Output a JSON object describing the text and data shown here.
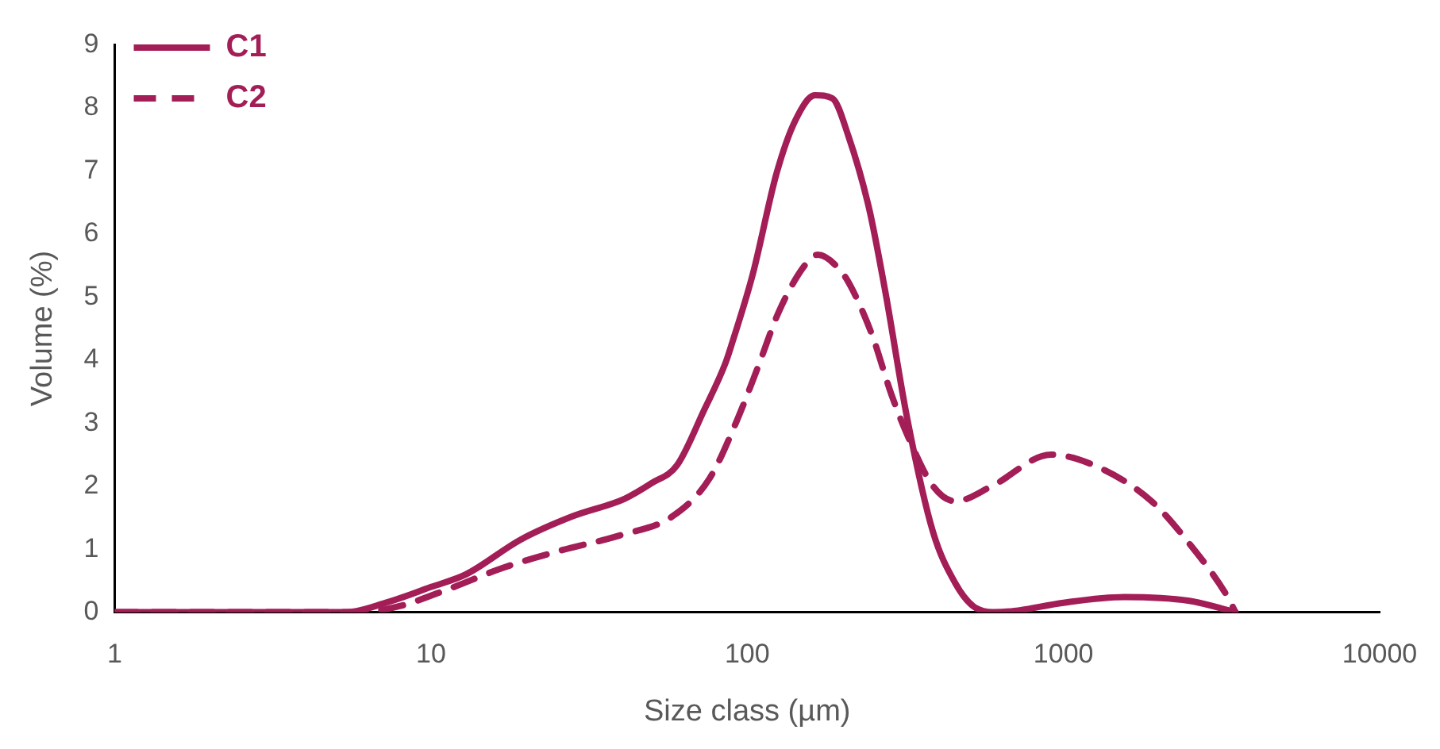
{
  "chart_data": {
    "type": "line",
    "xlabel": "Size class (µm)",
    "ylabel": "Volume (%)",
    "log": "x",
    "xlim": [
      1,
      10000
    ],
    "xticks": [
      1,
      10,
      100,
      1000,
      10000
    ],
    "ylim": [
      0,
      9
    ],
    "yticks": [
      0,
      1,
      2,
      3,
      4,
      5,
      6,
      7,
      8,
      9
    ],
    "grid": false,
    "legend": "top left",
    "marker": "none",
    "series": [
      {
        "name": "C1",
        "color": "#a31d56",
        "line_style": "solid",
        "x": [
          1,
          2,
          3,
          5.4,
          7.2,
          10,
          12.9,
          19.2,
          28,
          41,
          50,
          60,
          73,
          85.5,
          90,
          104,
          124,
          142,
          164,
          186,
          209,
          243,
          273,
          321,
          387,
          455,
          517,
          600,
          700,
          1000,
          1560,
          2500,
          3500
        ],
        "values": [
          0,
          0,
          0,
          0,
          0.15,
          0.4,
          0.6,
          1.15,
          1.52,
          1.8,
          2.05,
          2.33,
          3.2,
          3.96,
          4.3,
          5.35,
          6.97,
          7.8,
          8.2,
          8.15,
          7.55,
          6.4,
          5.1,
          3.06,
          1.27,
          0.46,
          0.1,
          0,
          0.02,
          0.15,
          0.24,
          0.18,
          0
        ]
      },
      {
        "name": "C2",
        "color": "#a31d56",
        "line_style": "dashed",
        "x": [
          1,
          2,
          3,
          6,
          8,
          11.4,
          16.8,
          25.8,
          39.7,
          58,
          76,
          92.6,
          108,
          126,
          152,
          167,
          200,
          216,
          249,
          285,
          321,
          387,
          455,
          594,
          913,
          1290,
          1900,
          2490,
          3300,
          3500
        ],
        "values": [
          0,
          0,
          0,
          0,
          0.1,
          0.37,
          0.7,
          0.98,
          1.22,
          1.52,
          2.12,
          3.03,
          3.88,
          4.77,
          5.5,
          5.67,
          5.38,
          5.1,
          4.38,
          3.47,
          2.81,
          2.0,
          1.76,
          2.0,
          2.5,
          2.3,
          1.76,
          1.1,
          0.25,
          0
        ]
      }
    ]
  }
}
